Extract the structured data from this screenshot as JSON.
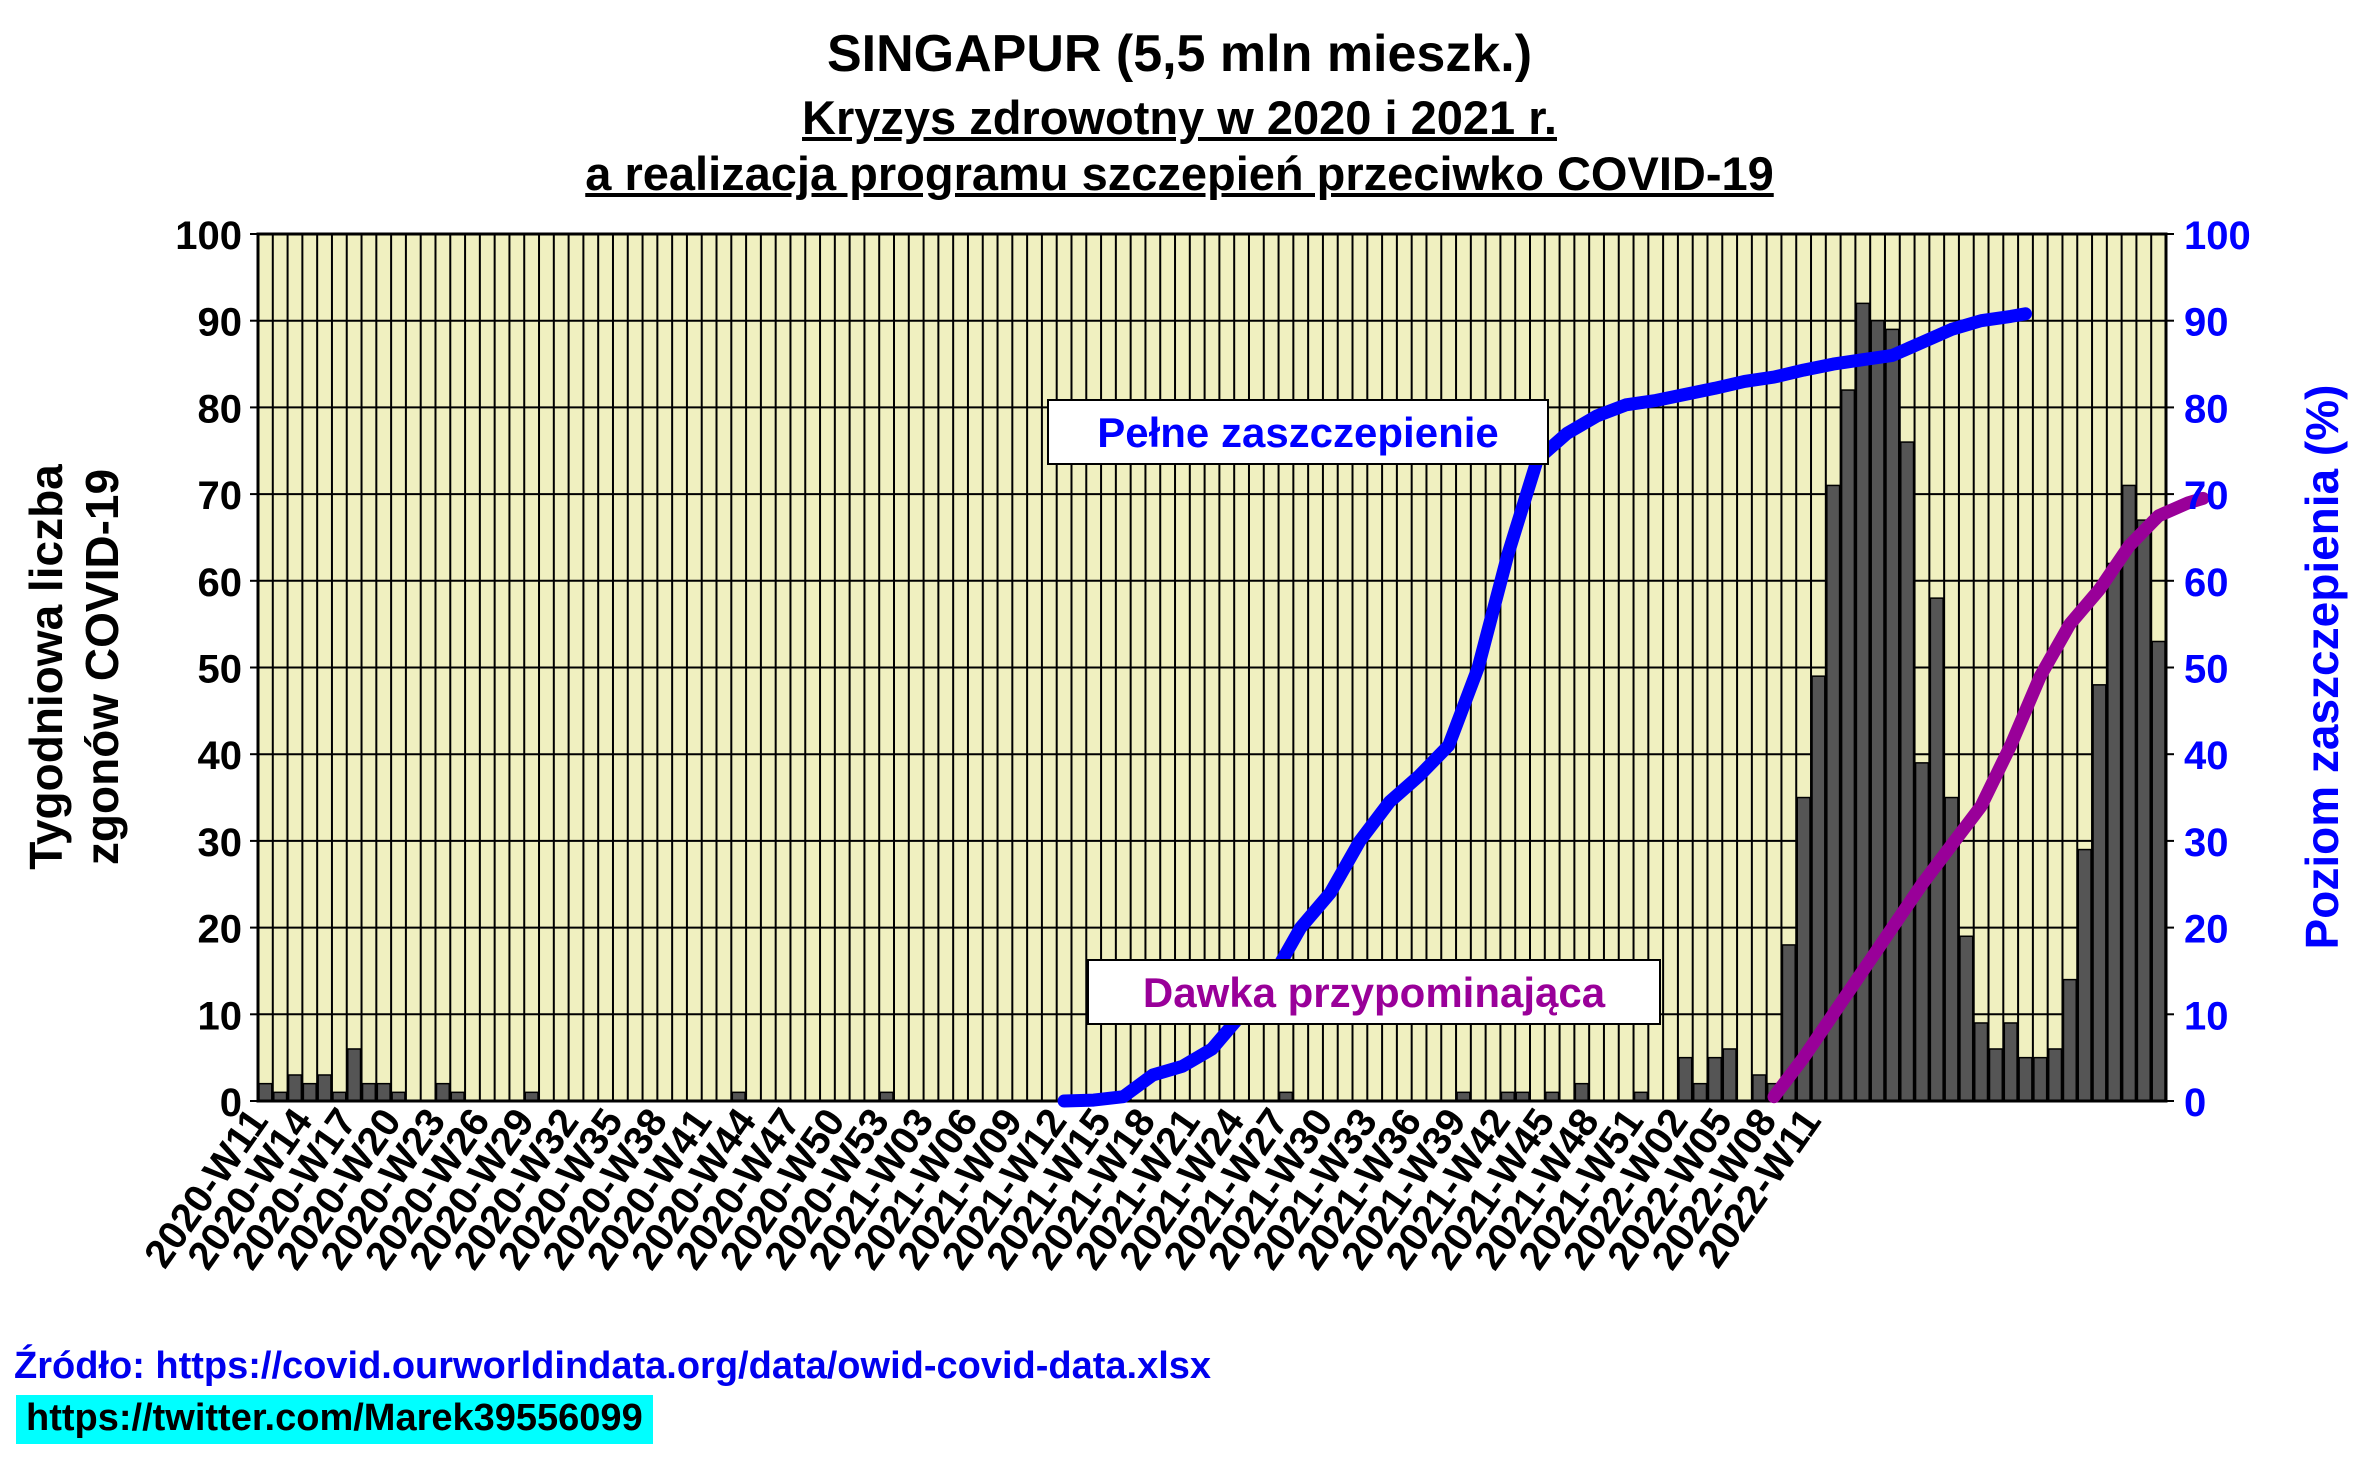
{
  "titles": {
    "main": "SINGAPUR (5,5 mln mieszk.)",
    "sub1": "Kryzys zdrowotny w 2020 i 2021 r.",
    "sub2": "a realizacja programu szczepień przeciwko COVID-19"
  },
  "source": "Źródło: https://covid.ourworldindata.org/data/owid-covid-data.xlsx",
  "twitter": "https://twitter.com/Marek39556099",
  "colors": {
    "plot_bg": "#f0f0c0",
    "bar": "#555555",
    "full_line": "#0000ff",
    "booster_line": "#990099",
    "right_axis": "#0000ff"
  },
  "chart_data": {
    "type": "bar",
    "x_tick_labels": [
      "2020-W11",
      "2020-W14",
      "2020-W17",
      "2020-W20",
      "2020-W23",
      "2020-W26",
      "2020-W29",
      "2020-W32",
      "2020-W35",
      "2020-W38",
      "2020-W41",
      "2020-W44",
      "2020-W47",
      "2020-W50",
      "2020-W53",
      "2021-W03",
      "2021-W06",
      "2021-W09",
      "2021-W12",
      "2021-W15",
      "2021-W18",
      "2021-W21",
      "2021-W24",
      "2021-W27",
      "2021-W30",
      "2021-W33",
      "2021-W36",
      "2021-W39",
      "2021-W42",
      "2021-W45",
      "2021-W48",
      "2021-W51",
      "2022-W02",
      "2022-W05",
      "2022-W08",
      "2022-W11"
    ],
    "ylabel_left": "Tygodniowa liczba zgonów COVID-19",
    "ylabel_right": "Poziom zaszczepienia (%)",
    "ylim_left": [
      0,
      100
    ],
    "ylim_right": [
      0,
      100
    ],
    "y_ticks": [
      0,
      10,
      20,
      30,
      40,
      50,
      60,
      70,
      80,
      90,
      100
    ],
    "grid": true,
    "bars": {
      "name": "Tygodniowa liczba zgonów COVID-19",
      "x_start": "2020-W11",
      "values": [
        2,
        1,
        3,
        2,
        3,
        1,
        6,
        2,
        2,
        1,
        0,
        0,
        2,
        1,
        0,
        0,
        0,
        0,
        1,
        0,
        0,
        0,
        0,
        0,
        0,
        0,
        0,
        0,
        0,
        0,
        0,
        0,
        1,
        0,
        0,
        0,
        0,
        0,
        0,
        0,
        0,
        0,
        1,
        0,
        0,
        0,
        0,
        0,
        0,
        0,
        0,
        0,
        0,
        0,
        0,
        0,
        0,
        0,
        0,
        0,
        0,
        0,
        0,
        0,
        0,
        0,
        0,
        0,
        0,
        1,
        0,
        0,
        0,
        0,
        0,
        0,
        0,
        0,
        0,
        0,
        0,
        1,
        0,
        0,
        1,
        1,
        0,
        1,
        0,
        2,
        0,
        0,
        0,
        1,
        0,
        0,
        5,
        2,
        5,
        6,
        0,
        3,
        2,
        18,
        35,
        49,
        71,
        82,
        92,
        90,
        89,
        76,
        39,
        58,
        35,
        19,
        9,
        6,
        9,
        5,
        5,
        6,
        14,
        29,
        48,
        62,
        71,
        67,
        53
      ]
    },
    "series": [
      {
        "name": "Pełne zaszczepienie",
        "axis": "right",
        "points": [
          [
            54,
            0
          ],
          [
            56,
            0.1
          ],
          [
            58,
            0.5
          ],
          [
            60,
            3
          ],
          [
            62,
            4
          ],
          [
            64,
            6
          ],
          [
            66,
            10
          ],
          [
            68,
            14
          ],
          [
            70,
            20
          ],
          [
            72,
            24
          ],
          [
            74,
            30
          ],
          [
            76,
            34.5
          ],
          [
            78,
            37.5
          ],
          [
            80,
            41
          ],
          [
            82,
            50
          ],
          [
            84,
            63
          ],
          [
            86,
            74
          ],
          [
            88,
            77
          ],
          [
            90,
            79
          ],
          [
            92,
            80.3
          ],
          [
            94,
            80.8
          ],
          [
            96,
            81.5
          ],
          [
            98,
            82.2
          ],
          [
            100,
            83
          ],
          [
            102,
            83.5
          ],
          [
            104,
            84.3
          ],
          [
            106,
            85
          ],
          [
            108,
            85.5
          ],
          [
            110,
            86
          ],
          [
            112,
            87.5
          ],
          [
            114,
            89
          ],
          [
            116,
            90
          ],
          [
            118,
            90.5
          ],
          [
            119,
            90.8
          ]
        ]
      },
      {
        "name": "Dawka przypominająca",
        "axis": "right",
        "points": [
          [
            102,
            0.5
          ],
          [
            104,
            5
          ],
          [
            106,
            10
          ],
          [
            108,
            15
          ],
          [
            110,
            20
          ],
          [
            112,
            25
          ],
          [
            114,
            29.5
          ],
          [
            116,
            34
          ],
          [
            118,
            41
          ],
          [
            120,
            49
          ],
          [
            122,
            55
          ],
          [
            124,
            59
          ],
          [
            126,
            64
          ],
          [
            128,
            67.5
          ],
          [
            130,
            69
          ],
          [
            131,
            69.5
          ]
        ]
      }
    ],
    "annotations": [
      {
        "text": "Pełne zaszczepienie",
        "color": "#0000ff"
      },
      {
        "text": "Dawka przypominająca",
        "color": "#990099"
      }
    ]
  }
}
